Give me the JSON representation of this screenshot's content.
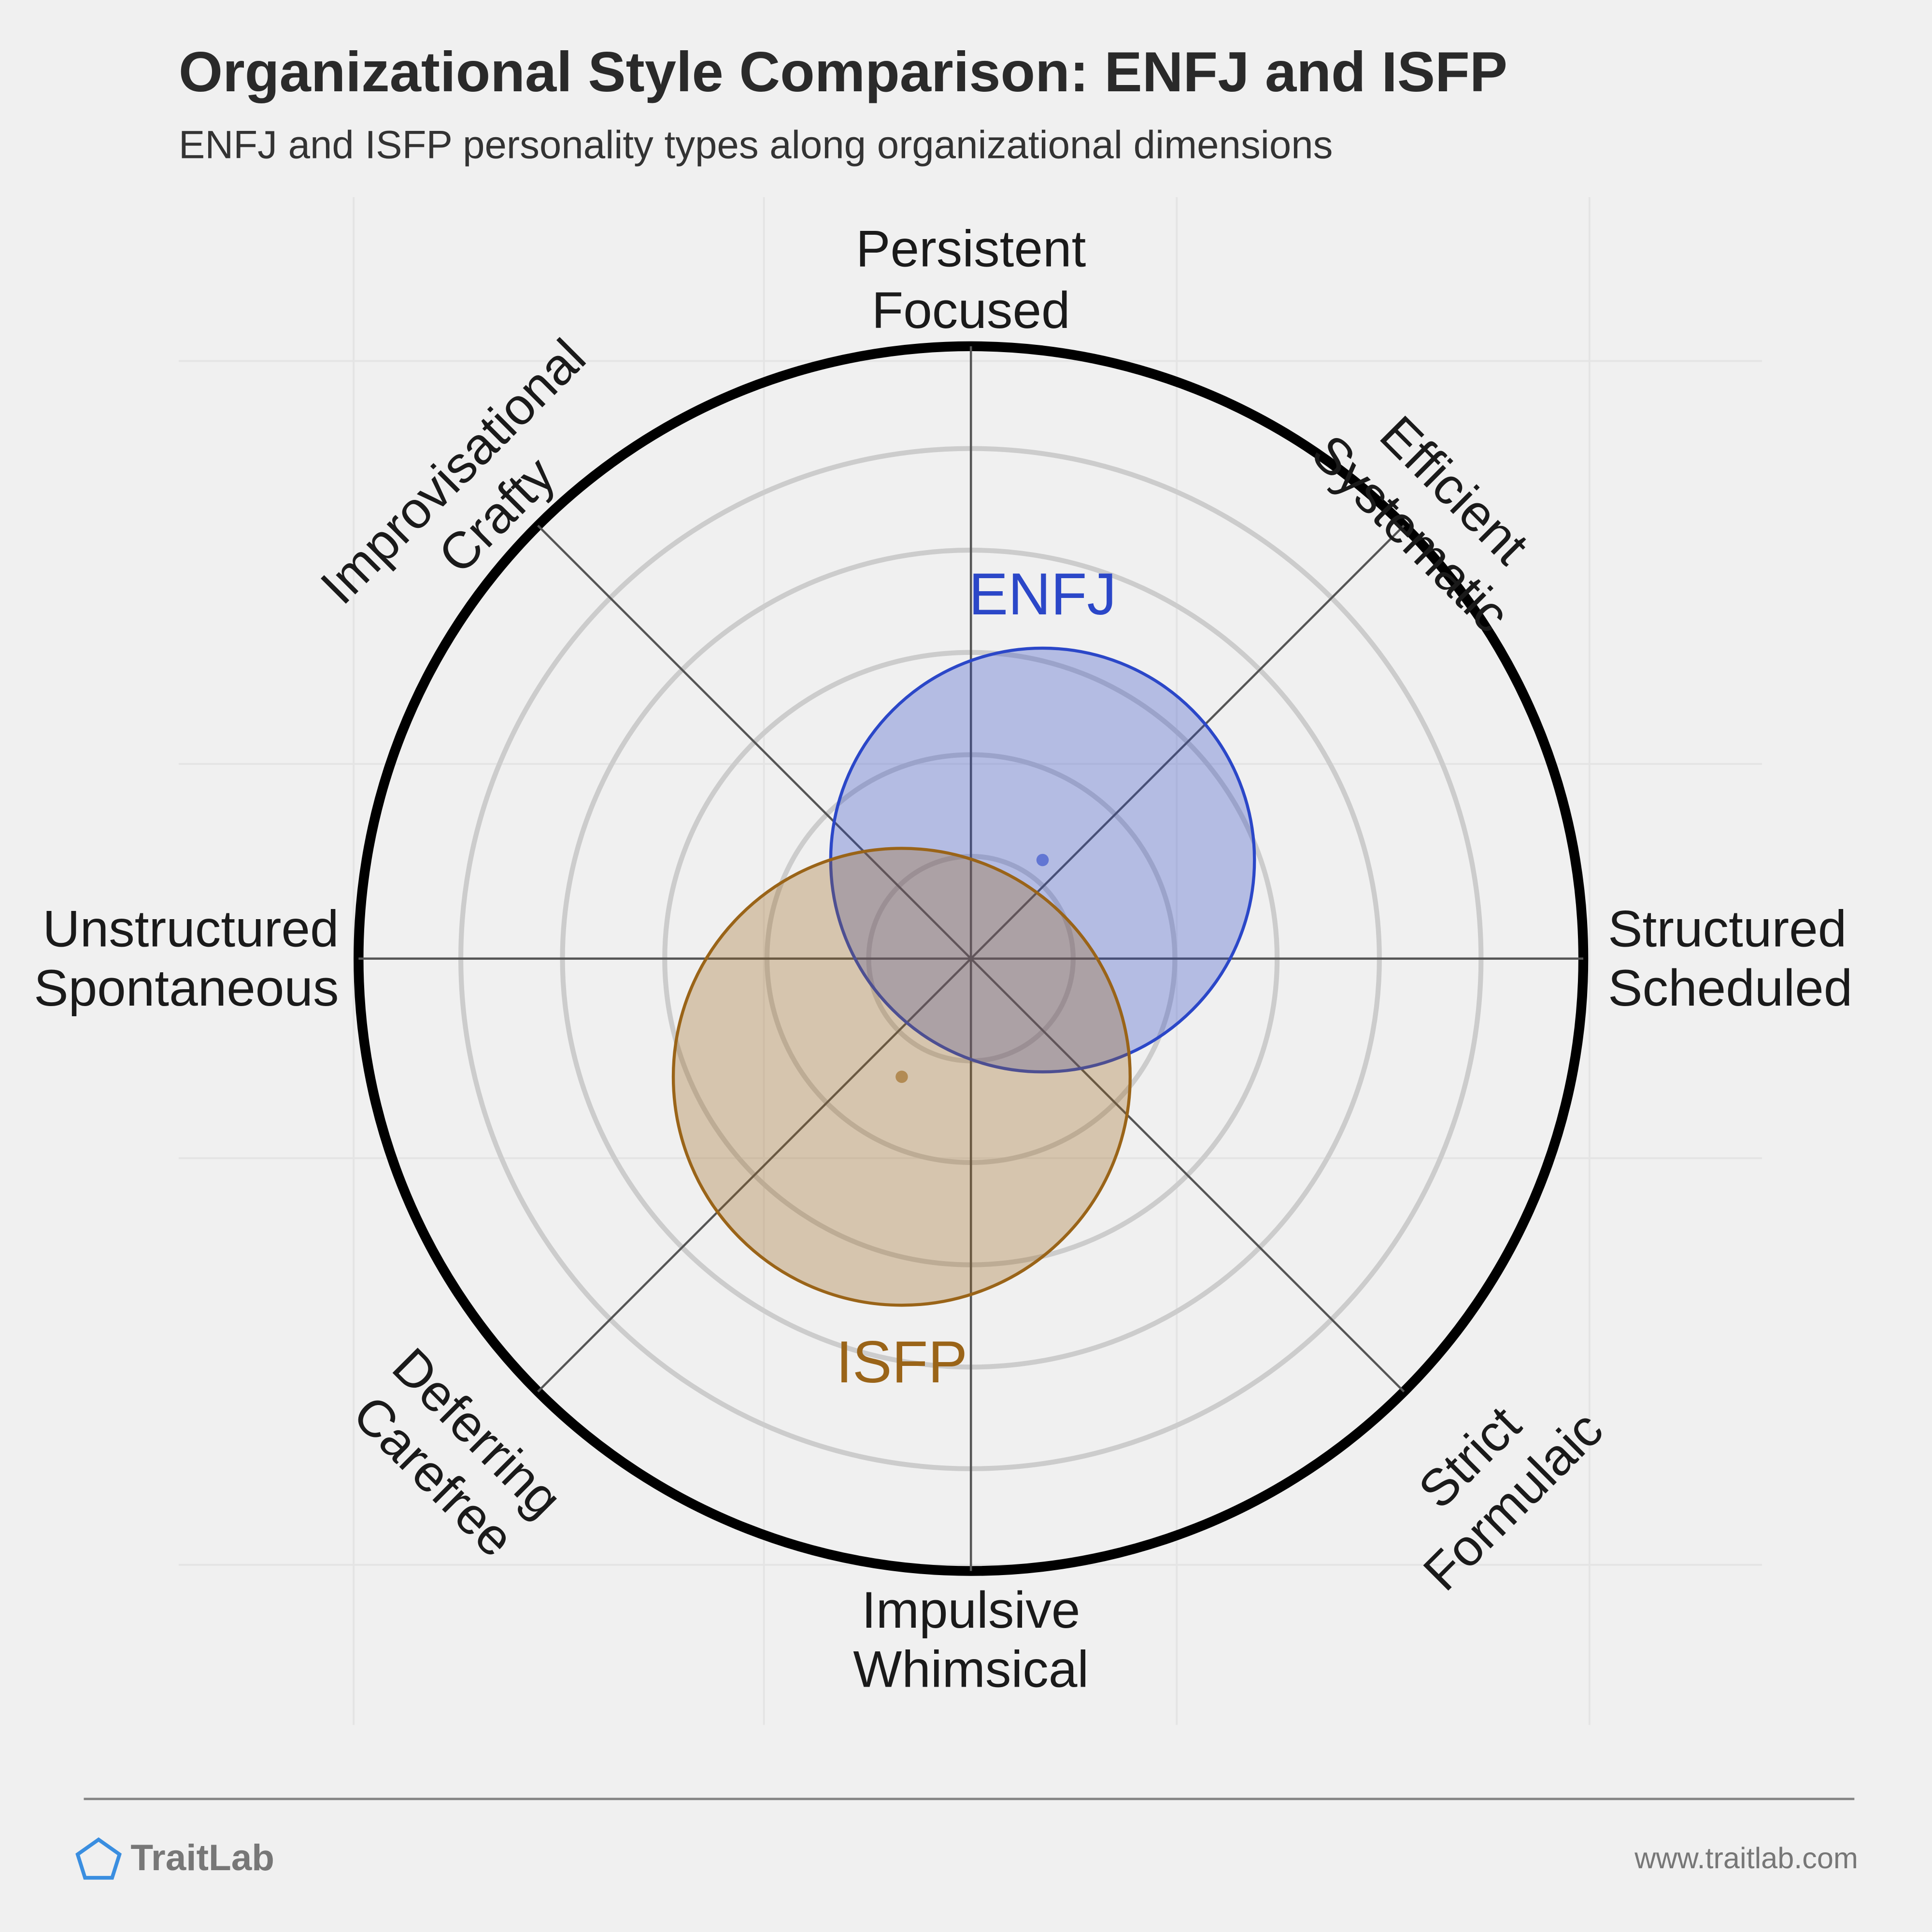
{
  "chart_data": {
    "type": "radial",
    "title": "Organizational Style Comparison: ENFJ and ISFP",
    "subtitle": "ENFJ and ISFP personality types along organizational dimensions",
    "axes": [
      [
        "Persistent",
        "Focused"
      ],
      [
        "Efficient",
        "Systematic"
      ],
      [
        "Structured",
        "Scheduled"
      ],
      [
        "Strict",
        "Formulaic"
      ],
      [
        "Impulsive",
        "Whimsical"
      ],
      [
        "Deferring",
        "Carefree"
      ],
      [
        "Unstructured",
        "Spontaneous"
      ],
      [
        "Improvisational",
        "Crafty"
      ]
    ],
    "rlim": [
      0,
      100
    ],
    "rticks": [
      16.7,
      33.3,
      50,
      66.7,
      83.3,
      100
    ],
    "series": [
      {
        "name": "ENFJ",
        "color": "#2b47c8",
        "x": 11.7,
        "y": 16.1,
        "r": 34.6
      },
      {
        "name": "ISFP",
        "color": "#9a6418",
        "x": -11.3,
        "y": -19.3,
        "r": 37.3
      }
    ]
  },
  "footer": {
    "brand": "TraitLab",
    "url": "www.traitlab.com"
  }
}
